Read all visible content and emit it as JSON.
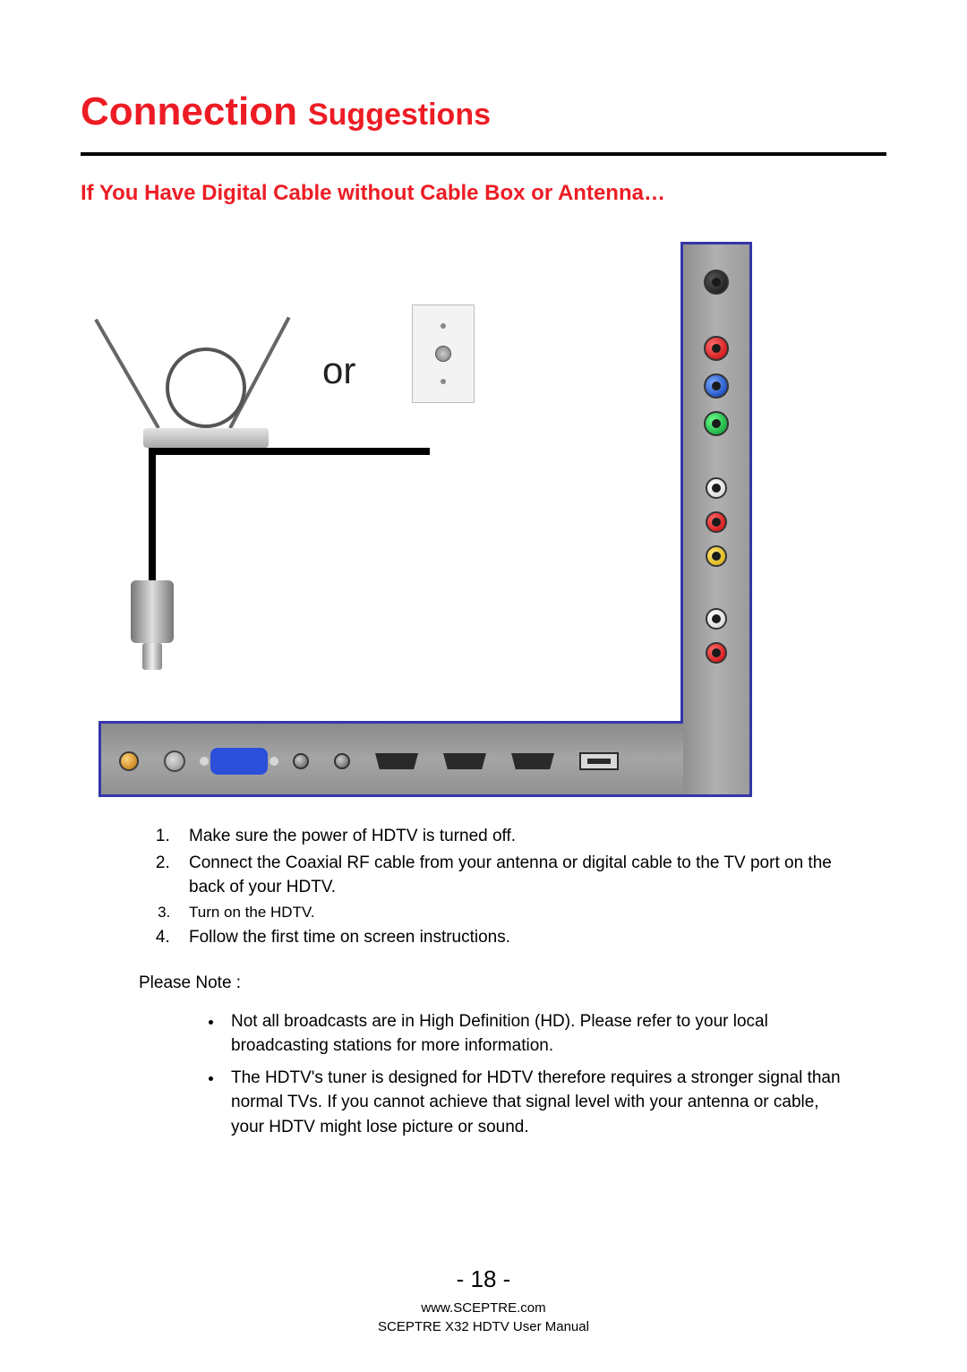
{
  "title": {
    "word1": "Connection",
    "word2": "Suggestions"
  },
  "subhead": "If You Have Digital Cable without Cable Box or Antenna…",
  "diagram": {
    "or_label": "or",
    "panel_border_color": "#3535a8",
    "side_jacks": [
      {
        "name": "black",
        "color": "#111"
      },
      {
        "name": "red",
        "color": "#c40000"
      },
      {
        "name": "blue",
        "color": "#0033aa"
      },
      {
        "name": "green",
        "color": "#008f2a"
      },
      {
        "name": "white",
        "color": "#cfcfcf"
      },
      {
        "name": "red2",
        "color": "#c40000"
      },
      {
        "name": "yellow",
        "color": "#cfa400"
      },
      {
        "name": "white2",
        "color": "#cfcfcf"
      },
      {
        "name": "red3",
        "color": "#c40000"
      }
    ],
    "bottom_ports": [
      "audio-out",
      "coax",
      "vga",
      "pc-audio",
      "spdif",
      "hdmi1",
      "hdmi2",
      "hdmi3",
      "usb"
    ]
  },
  "steps": {
    "s1": "Make sure the power of HDTV is turned off.",
    "s2": "Connect the Coaxial RF cable from your antenna or digital cable to the TV port on the back of your HDTV.",
    "s3": "Turn on the HDTV.",
    "s4": "Follow the first time on screen instructions."
  },
  "please_note_label": "Please Note :",
  "notes": {
    "n1": "Not all broadcasts are in High Definition (HD).  Please refer to your local broadcasting stations for more information.",
    "n2": "The HDTV's tuner is designed for HDTV therefore requires a stronger signal than normal TVs.  If you cannot achieve that signal level with your antenna or cable, your HDTV might lose picture or sound."
  },
  "footer": {
    "page": "- 18 -",
    "url": "www.SCEPTRE.com",
    "manual": "SCEPTRE X32 HDTV User Manual"
  },
  "colors": {
    "accent": "#ed1c24",
    "text": "#000000",
    "background": "#ffffff"
  }
}
